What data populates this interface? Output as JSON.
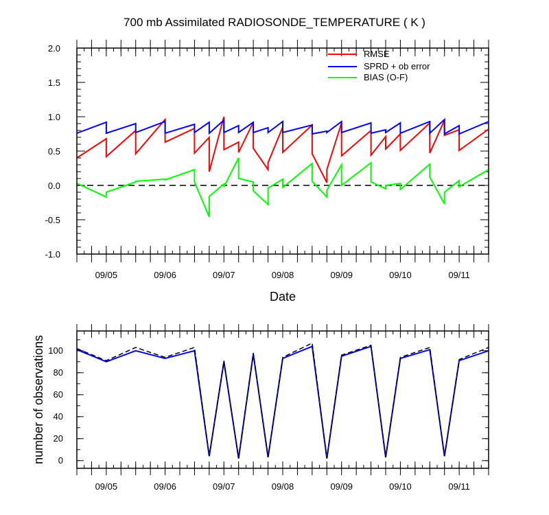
{
  "chart_data": [
    {
      "type": "line",
      "title": "700 mb Assimilated RADIOSONDE_TEMPERATURE ( K )",
      "xlabel": "Date",
      "ylabel": "",
      "x_unit": "days",
      "xlim": [
        4.5,
        11.5
      ],
      "ylim": [
        -1.0,
        2.0
      ],
      "x_tick_values": [
        5,
        6,
        7,
        8,
        9,
        10,
        11
      ],
      "x_tick_labels": [
        "09/05",
        "09/06",
        "09/07",
        "09/08",
        "09/09",
        "09/10",
        "09/11"
      ],
      "y_tick_values": [
        -1.0,
        -0.5,
        0.0,
        0.5,
        1.0,
        1.5,
        2.0
      ],
      "y_tick_labels": [
        "-1.0",
        "-0.5",
        "0.0",
        "0.5",
        "1.0",
        "1.5",
        "2.0"
      ],
      "reference_line": {
        "y": 0.0,
        "style": "dashed"
      },
      "legend_position": "top-right",
      "series": [
        {
          "name": "RMSE",
          "color": "#ff0000",
          "x": [
            4.5,
            5.0,
            5.0,
            5.5,
            5.5,
            6.0,
            6.0,
            6.5,
            6.5,
            6.75,
            6.75,
            7.0,
            7.0,
            7.25,
            7.25,
            7.5,
            7.5,
            7.75,
            7.75,
            8.0,
            8.0,
            8.5,
            8.5,
            8.75,
            8.75,
            9.0,
            9.0,
            9.5,
            9.5,
            9.75,
            9.75,
            10.0,
            10.0,
            10.5,
            10.5,
            10.75,
            10.75,
            11.0,
            11.0,
            11.5
          ],
          "y": [
            0.4,
            0.68,
            0.42,
            0.8,
            0.46,
            0.96,
            0.63,
            0.83,
            0.47,
            0.7,
            0.2,
            1.0,
            0.52,
            0.63,
            0.48,
            0.92,
            0.54,
            0.23,
            0.33,
            0.85,
            0.48,
            0.88,
            0.46,
            0.04,
            0.23,
            0.91,
            0.43,
            0.8,
            0.44,
            0.71,
            0.53,
            0.75,
            0.51,
            0.91,
            0.47,
            0.95,
            0.73,
            0.81,
            0.51,
            0.82
          ]
        },
        {
          "name": "SPRD + ob error",
          "color": "#0000ff",
          "x": [
            4.5,
            5.0,
            5.0,
            5.5,
            5.5,
            6.0,
            6.0,
            6.5,
            6.5,
            6.75,
            6.75,
            7.0,
            7.0,
            7.25,
            7.25,
            7.5,
            7.5,
            7.75,
            7.75,
            8.0,
            8.0,
            8.5,
            8.5,
            8.75,
            8.75,
            9.0,
            9.0,
            9.5,
            9.5,
            9.75,
            9.75,
            10.0,
            10.0,
            10.5,
            10.5,
            10.75,
            10.75,
            11.0,
            11.0,
            11.5
          ],
          "y": [
            0.76,
            0.92,
            0.76,
            0.9,
            0.77,
            0.93,
            0.76,
            0.89,
            0.77,
            0.92,
            0.76,
            0.95,
            0.77,
            0.87,
            0.77,
            0.92,
            0.77,
            0.84,
            0.77,
            0.93,
            0.77,
            0.88,
            0.75,
            0.79,
            0.77,
            0.93,
            0.77,
            0.91,
            0.76,
            0.81,
            0.77,
            0.91,
            0.76,
            0.93,
            0.76,
            0.96,
            0.75,
            0.87,
            0.75,
            0.93
          ]
        },
        {
          "name": "BIAS (O-F)",
          "color": "#00ff00",
          "x": [
            4.5,
            5.0,
            5.0,
            5.5,
            5.5,
            6.0,
            6.0,
            6.5,
            6.5,
            6.75,
            6.75,
            7.0,
            7.0,
            7.25,
            7.25,
            7.5,
            7.5,
            7.75,
            7.75,
            8.0,
            8.0,
            8.5,
            8.5,
            8.75,
            8.75,
            9.0,
            9.0,
            9.5,
            9.5,
            9.75,
            9.75,
            10.0,
            10.0,
            10.5,
            10.5,
            10.75,
            10.75,
            11.0,
            11.0,
            11.5
          ],
          "y": [
            0.03,
            -0.17,
            -0.1,
            0.05,
            0.06,
            0.09,
            0.08,
            0.23,
            0.05,
            -0.46,
            -0.16,
            0.02,
            -0.02,
            0.4,
            0.1,
            0.05,
            -0.08,
            -0.28,
            -0.04,
            0.09,
            -0.03,
            0.32,
            0.06,
            -0.17,
            -0.07,
            0.3,
            0.0,
            0.33,
            0.05,
            -0.05,
            0.0,
            0.03,
            -0.06,
            0.31,
            0.12,
            -0.27,
            -0.1,
            0.07,
            -0.02,
            0.23
          ]
        }
      ]
    },
    {
      "type": "line",
      "title": "",
      "xlabel": "",
      "ylabel": "number of observations",
      "x_unit": "days",
      "xlim": [
        4.5,
        11.5
      ],
      "ylim": [
        -7,
        118
      ],
      "x_tick_values": [
        5,
        6,
        7,
        8,
        9,
        10,
        11
      ],
      "x_tick_labels": [
        "09/05",
        "09/06",
        "09/07",
        "09/08",
        "09/09",
        "09/10",
        "09/11"
      ],
      "y_tick_values": [
        0,
        20,
        40,
        60,
        80,
        100
      ],
      "y_tick_labels": [
        "0",
        "20",
        "40",
        "60",
        "80",
        "100"
      ],
      "series": [
        {
          "color": "#0000ff",
          "style": "solid",
          "x": [
            4.5,
            5.0,
            5.5,
            6.0,
            6.5,
            6.75,
            7.0,
            7.25,
            7.5,
            7.75,
            8.0,
            8.5,
            8.75,
            9.0,
            9.5,
            9.75,
            10.0,
            10.5,
            10.75,
            11.0,
            11.5
          ],
          "y": [
            101,
            90,
            100,
            93,
            100,
            4,
            90,
            2,
            97,
            3,
            93,
            104,
            2,
            95,
            104,
            3,
            93,
            101,
            4,
            91,
            100
          ]
        },
        {
          "color": "#000000",
          "style": "dashed",
          "x": [
            4.5,
            5.0,
            5.5,
            6.0,
            6.5,
            6.75,
            7.0,
            7.25,
            7.5,
            7.75,
            8.0,
            8.5,
            8.75,
            9.0,
            9.5,
            9.75,
            10.0,
            10.5,
            10.75,
            11.0,
            11.5
          ],
          "y": [
            102,
            91,
            103,
            94,
            103,
            4,
            91,
            2,
            98,
            3,
            94,
            107,
            2,
            96,
            105,
            3,
            94,
            103,
            4,
            92,
            103
          ]
        }
      ]
    }
  ]
}
